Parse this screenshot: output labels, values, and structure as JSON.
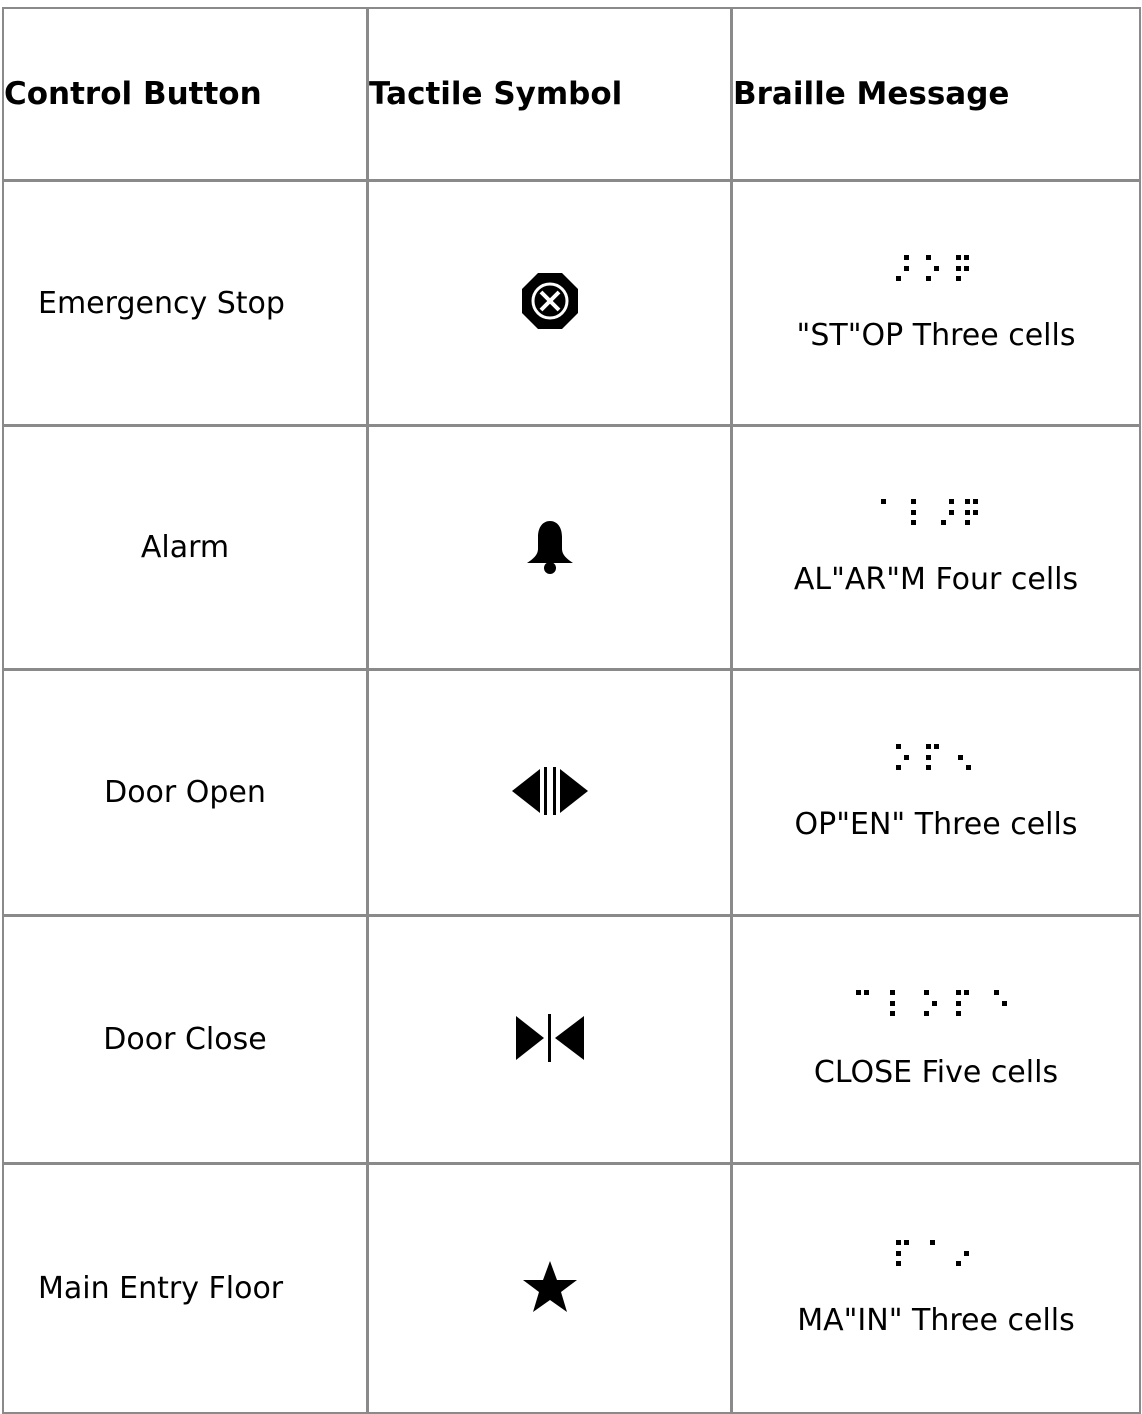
{
  "headers": {
    "control_button": "Control Button",
    "tactile_symbol": "Tactile Symbol",
    "braille_message": "Braille Message"
  },
  "rows": [
    {
      "control": "Emergency Stop",
      "symbol_icon": "octagon-x-icon",
      "braille_icon": "braille-st-o-p",
      "message": "\"ST\"OP Three cells"
    },
    {
      "control": "Alarm",
      "symbol_icon": "bell-icon",
      "braille_icon": "braille-al-ar-m",
      "message": "AL\"AR\"M Four cells"
    },
    {
      "control": "Door Open",
      "symbol_icon": "door-open-arrows-icon",
      "braille_icon": "braille-op-en",
      "message": "OP\"EN\" Three cells"
    },
    {
      "control": "Door Close",
      "symbol_icon": "door-close-arrows-icon",
      "braille_icon": "braille-close",
      "message": "CLOSE Five cells"
    },
    {
      "control": "Main Entry Floor",
      "symbol_icon": "star-icon",
      "braille_icon": "braille-ma-in",
      "message": "MA\"IN\" Three cells"
    }
  ]
}
